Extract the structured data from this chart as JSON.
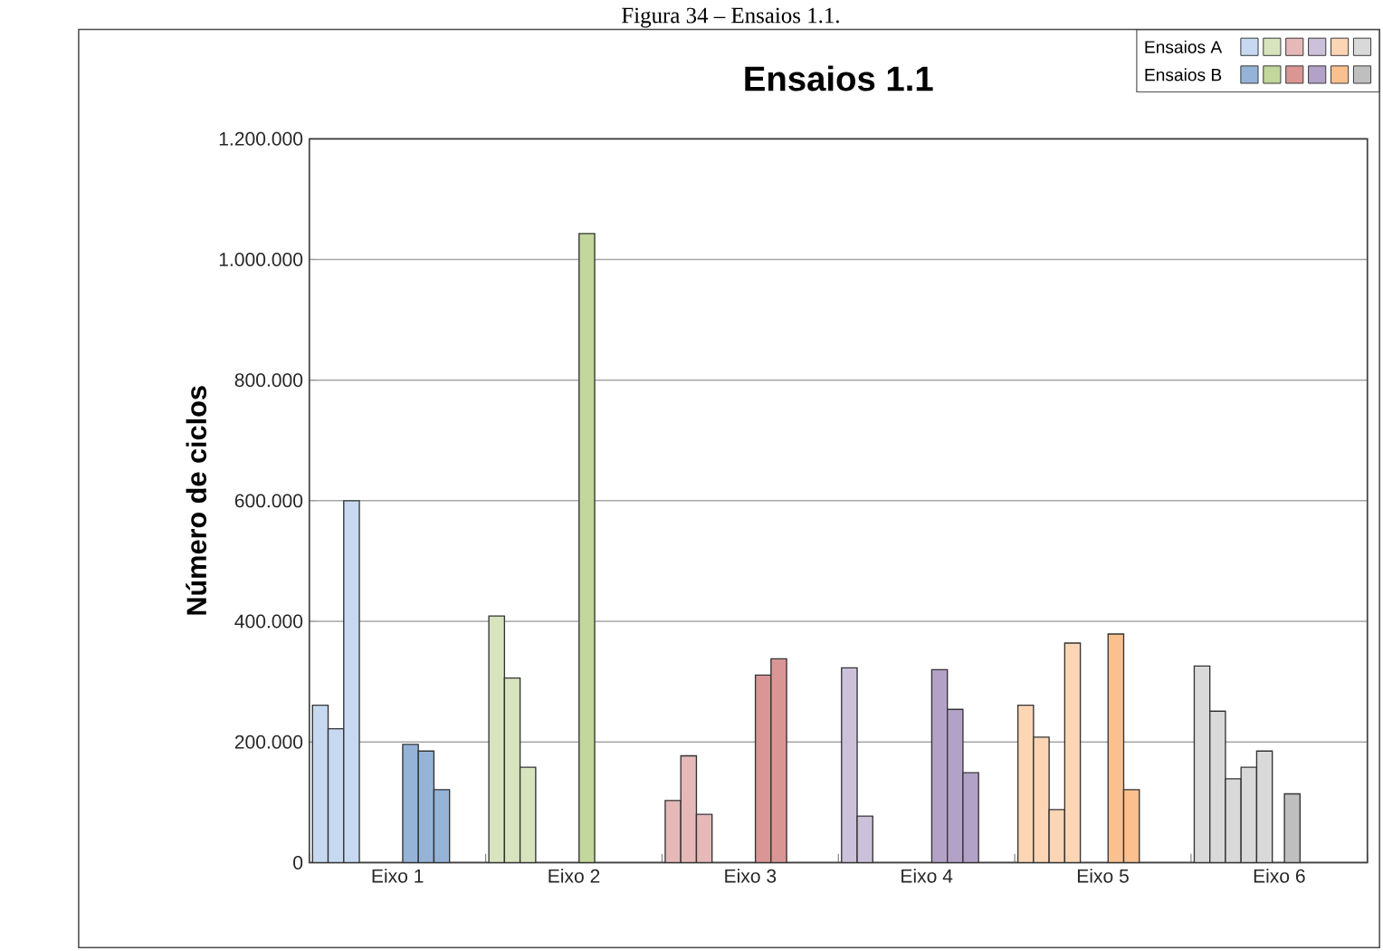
{
  "chart_data": {
    "type": "bar",
    "title": "Ensaios 1.1",
    "ylabel": "Número de ciclos",
    "annotations": [
      "Figura 34 – Ensaios 1.1."
    ],
    "categories": [
      "Eixo 1",
      "Eixo 2",
      "Eixo 3",
      "Eixo 4",
      "Eixo 5",
      "Eixo 6"
    ],
    "series": [
      {
        "name": "Ensaios A",
        "colors": [
          "#c6d9f1",
          "#d7e4bd",
          "#e6b9b8",
          "#ccc1da",
          "#fcd5b5",
          "#d9d9d9"
        ],
        "values": [
          261000,
          409000,
          103000,
          323000,
          261000,
          326000
        ]
      },
      {
        "colors": [
          "#c6d9f1",
          "#d7e4bd",
          "#e6b9b8",
          "#ccc1da",
          "#fcd5b5",
          "#d9d9d9"
        ],
        "values": [
          222000,
          306000,
          177000,
          77000,
          208000,
          251000
        ]
      },
      {
        "colors": [
          "#c6d9f1",
          "#d7e4bd",
          "#e6b9b8",
          "#ccc1da",
          "#fcd5b5",
          "#d9d9d9"
        ],
        "values": [
          600000,
          158000,
          80000,
          null,
          88000,
          139000
        ]
      },
      {
        "colors": [
          "#c6d9f1",
          "#d7e4bd",
          "#e6b9b8",
          "#ccc1da",
          "#fcd5b5",
          "#d9d9d9"
        ],
        "values": [
          null,
          null,
          null,
          null,
          364000,
          158000
        ]
      },
      {
        "colors": [
          "#c6d9f1",
          "#d7e4bd",
          "#e6b9b8",
          "#ccc1da",
          "#fcd5b5",
          "#d9d9d9"
        ],
        "values": [
          null,
          null,
          null,
          null,
          null,
          185000
        ]
      },
      {
        "name": "Ensaios B",
        "colors": [
          "#95b3d7",
          "#c3d69b",
          "#d99694",
          "#b3a2c7",
          "#fac090",
          "#bfbfbf"
        ],
        "values": [
          196000,
          1043000,
          311000,
          320000,
          379000,
          114000
        ]
      },
      {
        "colors": [
          "#95b3d7",
          "#c3d69b",
          "#d99694",
          "#b3a2c7",
          "#fac090",
          "#bfbfbf"
        ],
        "values": [
          185000,
          null,
          338000,
          254000,
          121000,
          null
        ]
      },
      {
        "colors": [
          "#95b3d7",
          "#c3d69b",
          "#d99694",
          "#b3a2c7",
          "#fac090",
          "#bfbfbf"
        ],
        "values": [
          121000,
          null,
          null,
          149000,
          null,
          null
        ]
      }
    ],
    "ylim": [
      0,
      1200000
    ],
    "yticks": [
      0,
      {
        "value": 200000,
        "label": "200.000"
      },
      {
        "value": 400000,
        "label": "400.000"
      },
      {
        "value": 600000,
        "label": "600.000"
      },
      {
        "value": 800000,
        "label": "800.000"
      },
      {
        "value": 1000000,
        "label": "1.000.000"
      },
      {
        "value": 1200000,
        "label": "1.200.000"
      }
    ],
    "grid": "y",
    "legend": "top right"
  }
}
